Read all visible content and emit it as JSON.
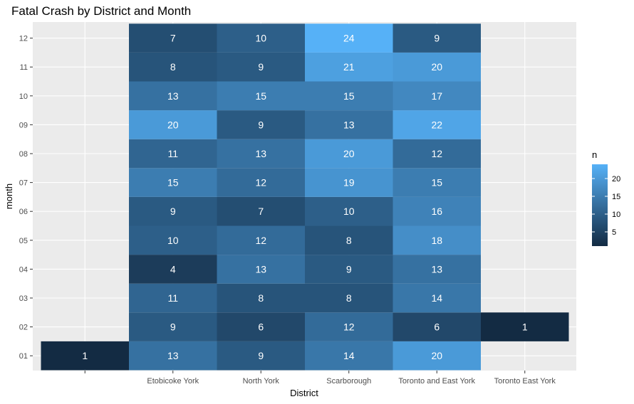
{
  "chart_data": {
    "type": "heatmap",
    "title": "Fatal Crash by District and Month",
    "xlabel": "District",
    "ylabel": "month",
    "x_categories": [
      "",
      "Etobicoke York",
      "North York",
      "Scarborough",
      "Toronto and East York",
      "Toronto East York"
    ],
    "y_categories": [
      "01",
      "02",
      "03",
      "04",
      "05",
      "06",
      "07",
      "08",
      "09",
      "10",
      "11",
      "12"
    ],
    "cells": [
      {
        "x": "",
        "y": "01",
        "n": 1
      },
      {
        "x": "Etobicoke York",
        "y": "01",
        "n": 13
      },
      {
        "x": "Etobicoke York",
        "y": "02",
        "n": 9
      },
      {
        "x": "Etobicoke York",
        "y": "03",
        "n": 11
      },
      {
        "x": "Etobicoke York",
        "y": "04",
        "n": 4
      },
      {
        "x": "Etobicoke York",
        "y": "05",
        "n": 10
      },
      {
        "x": "Etobicoke York",
        "y": "06",
        "n": 9
      },
      {
        "x": "Etobicoke York",
        "y": "07",
        "n": 15
      },
      {
        "x": "Etobicoke York",
        "y": "08",
        "n": 11
      },
      {
        "x": "Etobicoke York",
        "y": "09",
        "n": 20
      },
      {
        "x": "Etobicoke York",
        "y": "10",
        "n": 13
      },
      {
        "x": "Etobicoke York",
        "y": "11",
        "n": 8
      },
      {
        "x": "Etobicoke York",
        "y": "12",
        "n": 7
      },
      {
        "x": "North York",
        "y": "01",
        "n": 9
      },
      {
        "x": "North York",
        "y": "02",
        "n": 6
      },
      {
        "x": "North York",
        "y": "03",
        "n": 8
      },
      {
        "x": "North York",
        "y": "04",
        "n": 13
      },
      {
        "x": "North York",
        "y": "05",
        "n": 12
      },
      {
        "x": "North York",
        "y": "06",
        "n": 7
      },
      {
        "x": "North York",
        "y": "07",
        "n": 12
      },
      {
        "x": "North York",
        "y": "08",
        "n": 13
      },
      {
        "x": "North York",
        "y": "09",
        "n": 9
      },
      {
        "x": "North York",
        "y": "10",
        "n": 15
      },
      {
        "x": "North York",
        "y": "11",
        "n": 9
      },
      {
        "x": "North York",
        "y": "12",
        "n": 10
      },
      {
        "x": "Scarborough",
        "y": "01",
        "n": 14
      },
      {
        "x": "Scarborough",
        "y": "02",
        "n": 12
      },
      {
        "x": "Scarborough",
        "y": "03",
        "n": 8
      },
      {
        "x": "Scarborough",
        "y": "04",
        "n": 9
      },
      {
        "x": "Scarborough",
        "y": "05",
        "n": 8
      },
      {
        "x": "Scarborough",
        "y": "06",
        "n": 10
      },
      {
        "x": "Scarborough",
        "y": "07",
        "n": 19
      },
      {
        "x": "Scarborough",
        "y": "08",
        "n": 20
      },
      {
        "x": "Scarborough",
        "y": "09",
        "n": 13
      },
      {
        "x": "Scarborough",
        "y": "10",
        "n": 15
      },
      {
        "x": "Scarborough",
        "y": "11",
        "n": 21
      },
      {
        "x": "Scarborough",
        "y": "12",
        "n": 24
      },
      {
        "x": "Toronto and East York",
        "y": "01",
        "n": 20
      },
      {
        "x": "Toronto and East York",
        "y": "02",
        "n": 6
      },
      {
        "x": "Toronto and East York",
        "y": "03",
        "n": 14
      },
      {
        "x": "Toronto and East York",
        "y": "04",
        "n": 13
      },
      {
        "x": "Toronto and East York",
        "y": "05",
        "n": 18
      },
      {
        "x": "Toronto and East York",
        "y": "06",
        "n": 16
      },
      {
        "x": "Toronto and East York",
        "y": "07",
        "n": 15
      },
      {
        "x": "Toronto and East York",
        "y": "08",
        "n": 12
      },
      {
        "x": "Toronto and East York",
        "y": "09",
        "n": 22
      },
      {
        "x": "Toronto and East York",
        "y": "10",
        "n": 17
      },
      {
        "x": "Toronto and East York",
        "y": "11",
        "n": 20
      },
      {
        "x": "Toronto and East York",
        "y": "12",
        "n": 9
      },
      {
        "x": "Toronto East York",
        "y": "02",
        "n": 1
      }
    ],
    "fill_range": [
      1,
      24
    ],
    "color_low": "#132B43",
    "color_high": "#56B1F7",
    "panel_background": "#EBEBEB",
    "grid": true,
    "legend": {
      "title": "n",
      "placement": "right",
      "breaks": [
        5,
        10,
        15,
        20
      ]
    }
  }
}
